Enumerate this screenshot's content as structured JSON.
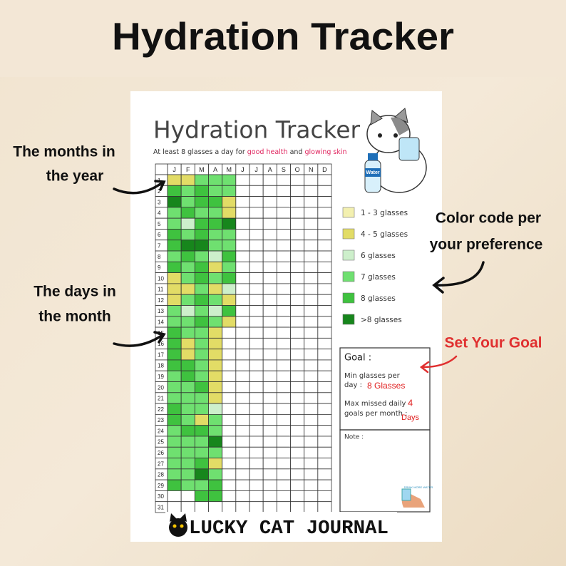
{
  "header": {
    "title": "Hydration Tracker"
  },
  "annotations": {
    "months": [
      "The months in",
      "the year"
    ],
    "days": [
      "The days in",
      "the month"
    ],
    "colors": [
      "Color code per",
      "your preference"
    ],
    "goal": "Set Your Goal"
  },
  "sheet": {
    "title": "Hydration Tracker",
    "subtitle": [
      "At least 8 glasses a day for ",
      "good health",
      " and ",
      "glowing skin"
    ],
    "bottle_label": "Water",
    "months": [
      "J",
      "F",
      "M",
      "A",
      "M",
      "J",
      "J",
      "A",
      "S",
      "O",
      "N",
      "D"
    ],
    "days": [
      1,
      2,
      3,
      4,
      5,
      6,
      7,
      8,
      9,
      10,
      11,
      12,
      13,
      14,
      15,
      16,
      17,
      18,
      19,
      20,
      21,
      22,
      23,
      24,
      25,
      26,
      27,
      28,
      29,
      30,
      31
    ],
    "legend": [
      {
        "label": "1 - 3 glasses",
        "color": "#f3f0b0"
      },
      {
        "label": "4 - 5 glasses",
        "color": "#e2dc66"
      },
      {
        "label": "6 glasses",
        "color": "#cdefcb"
      },
      {
        "label": "7 glasses",
        "color": "#6fe070"
      },
      {
        "label": "8 glasses",
        "color": "#3fc23f"
      },
      {
        "label": ">8 glasses",
        "color": "#17861c"
      }
    ],
    "levels": [
      [
        2,
        5,
        6,
        4,
        4,
        5,
        5,
        4,
        5,
        2,
        2,
        2,
        4,
        4,
        5,
        5,
        5,
        5,
        4,
        4,
        4,
        5,
        5,
        4,
        4,
        4,
        4,
        4,
        5,
        0,
        0
      ],
      [
        2,
        4,
        4,
        5,
        3,
        4,
        6,
        5,
        4,
        4,
        2,
        4,
        3,
        4,
        4,
        2,
        2,
        5,
        5,
        4,
        4,
        4,
        4,
        5,
        4,
        4,
        4,
        4,
        4,
        0,
        0
      ],
      [
        4,
        5,
        5,
        4,
        5,
        5,
        6,
        4,
        5,
        5,
        4,
        5,
        4,
        5,
        4,
        4,
        4,
        4,
        4,
        5,
        4,
        4,
        2,
        5,
        4,
        4,
        5,
        6,
        4,
        5,
        0
      ],
      [
        4,
        4,
        5,
        4,
        5,
        4,
        4,
        3,
        2,
        4,
        2,
        4,
        3,
        4,
        2,
        2,
        2,
        2,
        2,
        2,
        2,
        3,
        4,
        4,
        6,
        4,
        2,
        4,
        5,
        5,
        0
      ],
      [
        4,
        4,
        2,
        2,
        6,
        4,
        4,
        5,
        4,
        5,
        3,
        2,
        5,
        2,
        0,
        0,
        0,
        0,
        0,
        0,
        0,
        0,
        0,
        0,
        0,
        0,
        0,
        0,
        0,
        0,
        0
      ]
    ],
    "goal": {
      "heading": "Goal :",
      "min_label": [
        "Min glasses per",
        "day :"
      ],
      "min_value": "8 Glasses",
      "max_label": [
        "Max missed daily",
        "goals per month :"
      ],
      "max_value": "4",
      "max_unit": "Days"
    },
    "note": "Note :",
    "icon_text": "DRINK MORE WATER"
  },
  "footer": "LUCKY CAT JOURNAL"
}
